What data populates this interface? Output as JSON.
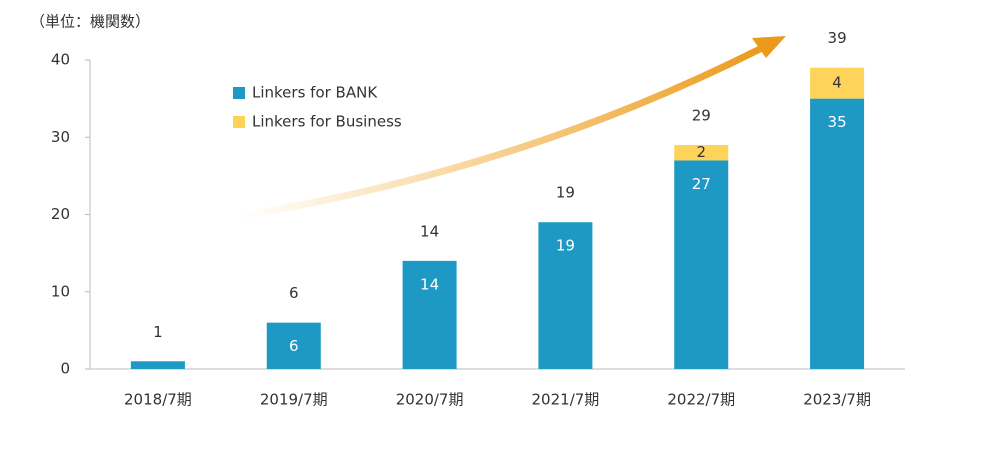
{
  "chart_data": {
    "type": "stacked_bar",
    "unit_label": "（単位：機関数）",
    "categories": [
      "2018/7期",
      "2019/7期",
      "2020/7期",
      "2021/7期",
      "2022/7期",
      "2023/7期"
    ],
    "series": [
      {
        "name": "Linkers for BANK",
        "color": "#1e98c4",
        "label_color": "#ffffff",
        "values": [
          1,
          6,
          14,
          19,
          27,
          35
        ]
      },
      {
        "name": "Linkers for Business",
        "color": "#fdd35a",
        "label_color": "#333333",
        "values": [
          null,
          null,
          null,
          null,
          2,
          4
        ]
      }
    ],
    "totals": [
      1,
      6,
      14,
      19,
      29,
      39
    ],
    "ylim": [
      0,
      40
    ],
    "yticks": [
      0,
      10,
      20,
      30,
      40
    ],
    "grid": false
  }
}
